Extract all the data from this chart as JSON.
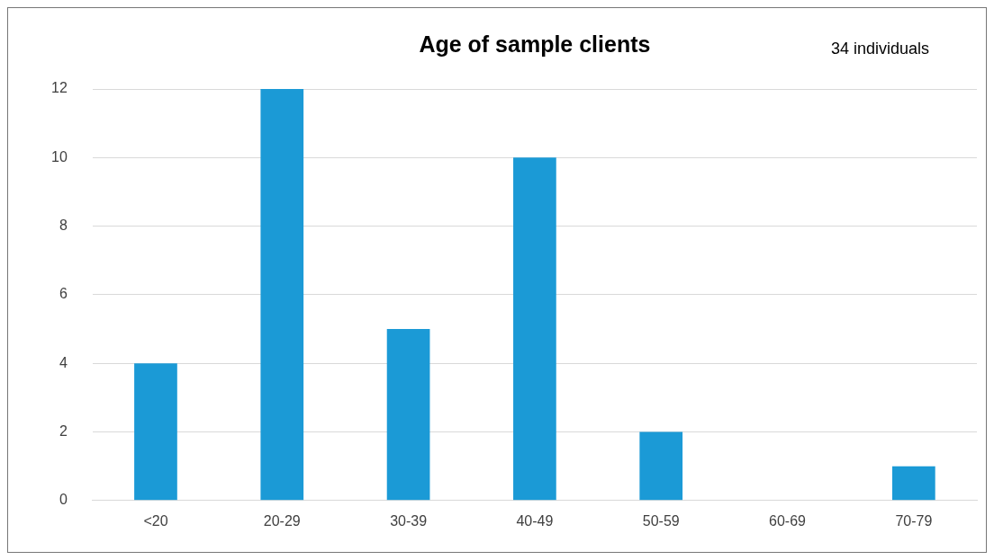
{
  "chart_data": {
    "type": "bar",
    "title": "Age of sample clients",
    "annotations": [
      "34 individuals"
    ],
    "categories": [
      "<20",
      "20-29",
      "30-39",
      "40-49",
      "50-59",
      "60-69",
      "70-79"
    ],
    "values": [
      4,
      12,
      5,
      10,
      2,
      0,
      1
    ],
    "color": "#1b9ad6",
    "ylim": [
      0,
      12
    ],
    "yticks": [
      0,
      2,
      4,
      6,
      8,
      10,
      12
    ],
    "grid": "y",
    "legend": false
  }
}
